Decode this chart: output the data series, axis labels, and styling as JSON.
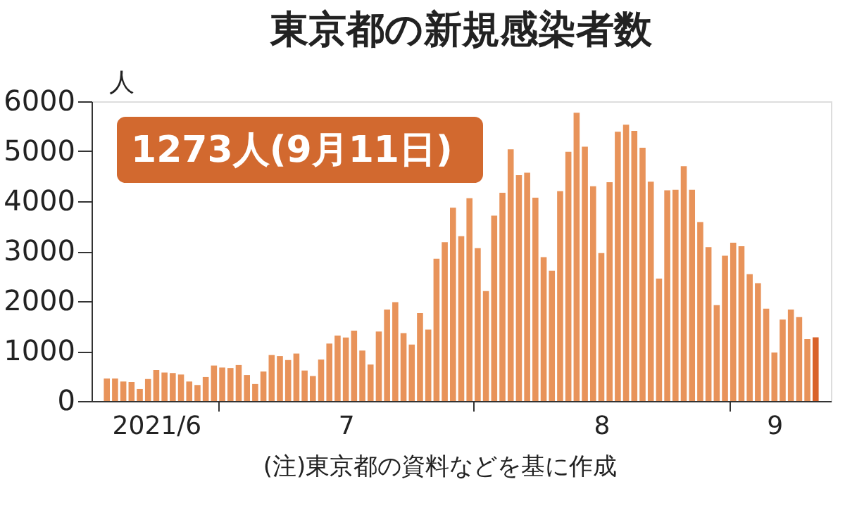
{
  "chart_data": {
    "type": "bar",
    "title": "東京都の新規感染者数",
    "ylabel": "人",
    "x": [
      "2021-06-17",
      "2021-06-18",
      "2021-06-19",
      "2021-06-20",
      "2021-06-21",
      "2021-06-22",
      "2021-06-23",
      "2021-06-24",
      "2021-06-25",
      "2021-06-26",
      "2021-06-27",
      "2021-06-28",
      "2021-06-29",
      "2021-06-30",
      "2021-07-01",
      "2021-07-02",
      "2021-07-03",
      "2021-07-04",
      "2021-07-05",
      "2021-07-06",
      "2021-07-07",
      "2021-07-08",
      "2021-07-09",
      "2021-07-10",
      "2021-07-11",
      "2021-07-12",
      "2021-07-13",
      "2021-07-14",
      "2021-07-15",
      "2021-07-16",
      "2021-07-17",
      "2021-07-18",
      "2021-07-19",
      "2021-07-20",
      "2021-07-21",
      "2021-07-22",
      "2021-07-23",
      "2021-07-24",
      "2021-07-25",
      "2021-07-26",
      "2021-07-27",
      "2021-07-28",
      "2021-07-29",
      "2021-07-30",
      "2021-07-31",
      "2021-08-01",
      "2021-08-02",
      "2021-08-03",
      "2021-08-04",
      "2021-08-05",
      "2021-08-06",
      "2021-08-07",
      "2021-08-08",
      "2021-08-09",
      "2021-08-10",
      "2021-08-11",
      "2021-08-12",
      "2021-08-13",
      "2021-08-14",
      "2021-08-15",
      "2021-08-16",
      "2021-08-17",
      "2021-08-18",
      "2021-08-19",
      "2021-08-20",
      "2021-08-21",
      "2021-08-22",
      "2021-08-23",
      "2021-08-24",
      "2021-08-25",
      "2021-08-26",
      "2021-08-27",
      "2021-08-28",
      "2021-08-29",
      "2021-08-30",
      "2021-08-31",
      "2021-09-01",
      "2021-09-02",
      "2021-09-03",
      "2021-09-04",
      "2021-09-05",
      "2021-09-06",
      "2021-09-07",
      "2021-09-08",
      "2021-09-09",
      "2021-09-10",
      "2021-09-11"
    ],
    "values": [
      450,
      450,
      390,
      380,
      240,
      440,
      620,
      570,
      560,
      530,
      390,
      320,
      480,
      710,
      670,
      660,
      720,
      520,
      340,
      590,
      920,
      900,
      820,
      950,
      610,
      500,
      830,
      1150,
      1310,
      1270,
      1410,
      1010,
      730,
      1390,
      1830,
      1980,
      1360,
      1130,
      1760,
      1430,
      2850,
      3180,
      3870,
      3300,
      4060,
      3060,
      2200,
      3710,
      4170,
      5040,
      4520,
      4570,
      4070,
      2880,
      2610,
      4200,
      4990,
      5770,
      5090,
      4300,
      2960,
      4380,
      5390,
      5530,
      5410,
      5070,
      4390,
      2450,
      4220,
      4230,
      4700,
      4230,
      3580,
      3080,
      1920,
      2910,
      3170,
      3100,
      2540,
      2360,
      1850,
      970,
      1630,
      1830,
      1680,
      1240,
      1273
    ],
    "colors": [
      "#e8935a",
      "#e8935a",
      "#e8935a",
      "#e8935a",
      "#e8935a",
      "#e8935a",
      "#e8935a",
      "#e8935a",
      "#e8935a",
      "#e8935a",
      "#e8935a",
      "#e8935a",
      "#e8935a",
      "#e8935a",
      "#e8935a",
      "#e8935a",
      "#e8935a",
      "#e8935a",
      "#e8935a",
      "#e8935a",
      "#e8935a",
      "#e8935a",
      "#e8935a",
      "#e8935a",
      "#e8935a",
      "#e8935a",
      "#e8935a",
      "#e8935a",
      "#e8935a",
      "#e8935a",
      "#e8935a",
      "#e8935a",
      "#e8935a",
      "#e8935a",
      "#e8935a",
      "#e8935a",
      "#e8935a",
      "#e8935a",
      "#e8935a",
      "#e8935a",
      "#e8935a",
      "#e8935a",
      "#e8935a",
      "#e8935a",
      "#e8935a",
      "#e8935a",
      "#e8935a",
      "#e8935a",
      "#e8935a",
      "#e8935a",
      "#e8935a",
      "#e8935a",
      "#e8935a",
      "#e8935a",
      "#e8935a",
      "#e8935a",
      "#e8935a",
      "#e8935a",
      "#e8935a",
      "#e8935a",
      "#e8935a",
      "#e8935a",
      "#e8935a",
      "#e8935a",
      "#e8935a",
      "#e8935a",
      "#e8935a",
      "#e8935a",
      "#e8935a",
      "#e8935a",
      "#e8935a",
      "#e8935a",
      "#e8935a",
      "#e8935a",
      "#e8935a",
      "#e8935a",
      "#e8935a",
      "#e8935a",
      "#e8935a",
      "#e8935a",
      "#e8935a",
      "#e8935a",
      "#e8935a",
      "#e8935a",
      "#e8935a",
      "#e8935a",
      "#d9622a"
    ],
    "xlim": [
      "2021-06-16",
      "2021-09-12"
    ],
    "xticks": [
      {
        "value": "2021-06-23",
        "label": "2021/6"
      },
      {
        "value": "2021-07-16",
        "label": "7"
      },
      {
        "value": "2021-08-16",
        "label": "8"
      },
      {
        "value": "2021-09-06",
        "label": "9"
      },
      {
        "value": "2021-06-30T12:00",
        "label": null
      },
      {
        "value": "2021-07-31T12:00",
        "label": null
      },
      {
        "value": "2021-08-31T12:00",
        "label": null
      }
    ],
    "ylim": [
      0,
      6000
    ],
    "yticks": [
      0,
      1000,
      2000,
      3000,
      4000,
      5000,
      6000
    ],
    "annotations": [
      "1273人(9月11日)",
      "(注)東京都の資料などを基に作成"
    ]
  }
}
